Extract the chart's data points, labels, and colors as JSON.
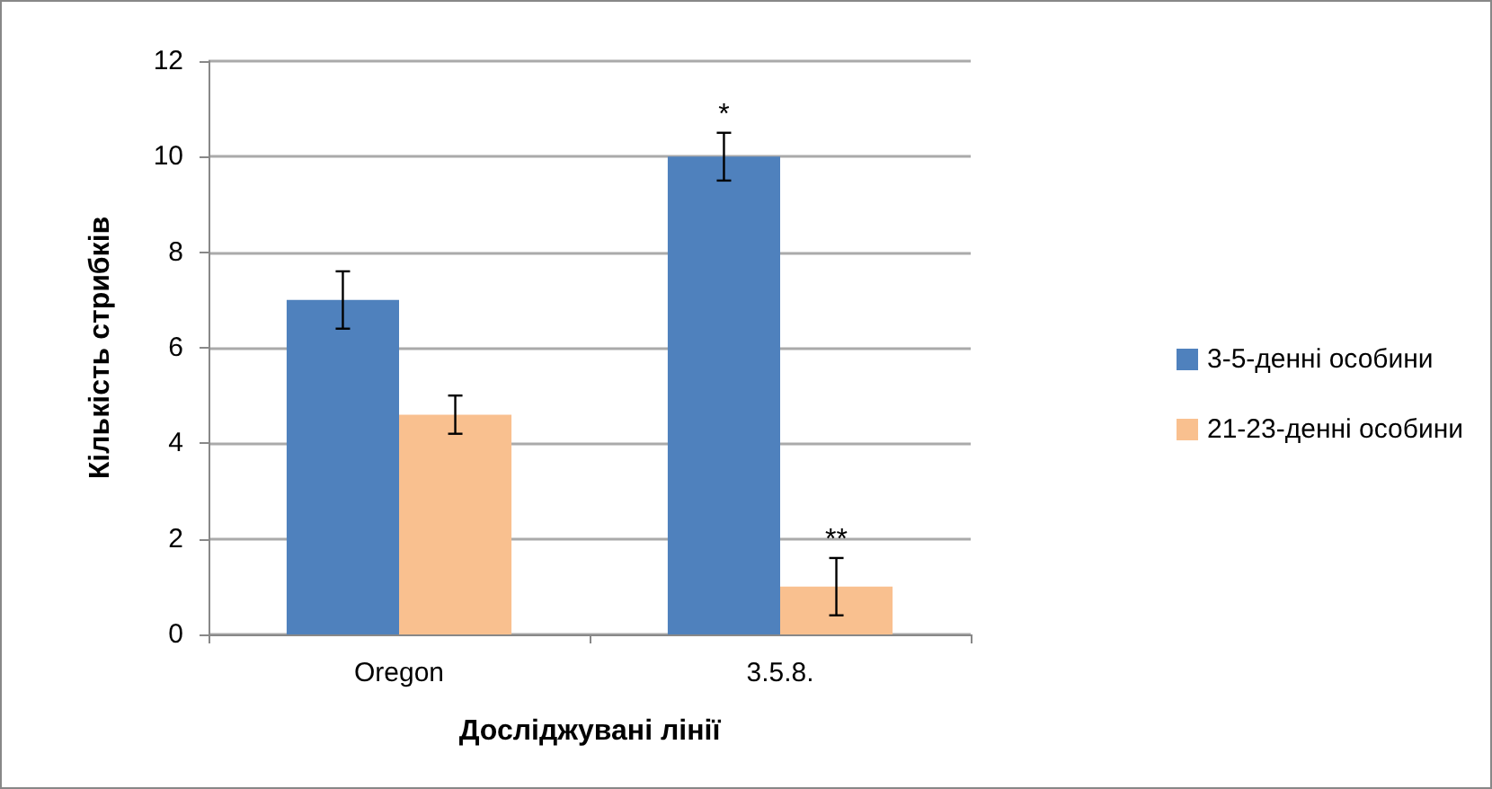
{
  "chart_data": {
    "type": "bar",
    "xlabel": "Досліджувані лінії",
    "ylabel": "Кількість стрибків",
    "categories": [
      "Oregon",
      "3.5.8."
    ],
    "series": [
      {
        "name": "3-5-денні особини",
        "color": "#4f81bd",
        "values": [
          7,
          10
        ],
        "errors": [
          0.6,
          0.5
        ]
      },
      {
        "name": "21-23-денні особини",
        "color": "#f9c08f",
        "values": [
          4.6,
          1
        ],
        "errors": [
          0.4,
          0.6
        ]
      }
    ],
    "ylim": [
      0,
      12
    ],
    "yticks": [
      0,
      2,
      4,
      6,
      8,
      10,
      12
    ],
    "grid": "y",
    "legend": "right",
    "annotations": [
      {
        "text": "*",
        "x": "3.5.8.",
        "y": 10
      },
      {
        "text": "**",
        "x": "3.5.8.",
        "y": 1
      }
    ]
  }
}
